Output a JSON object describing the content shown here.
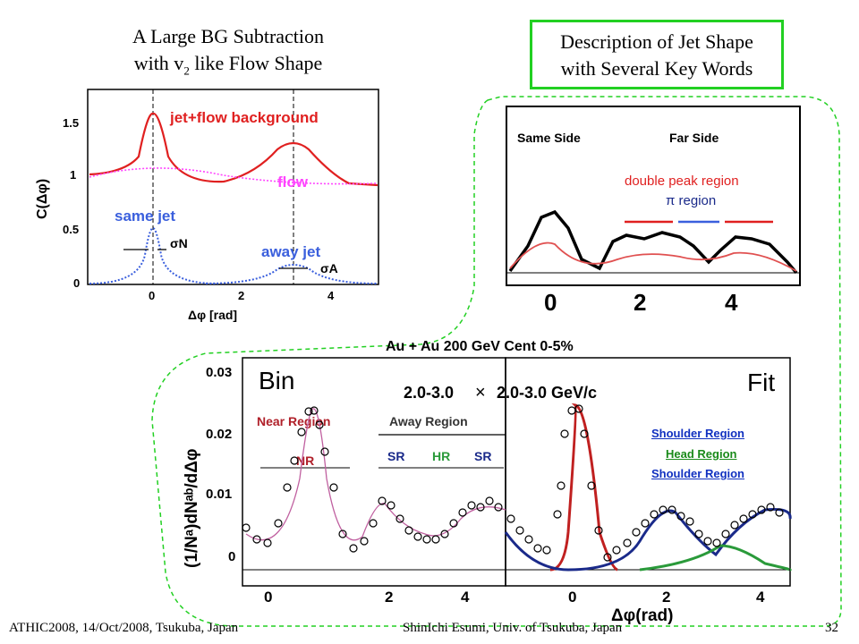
{
  "slide": {
    "title_left_line1": "A Large BG Subtraction",
    "title_left_line2_pre": "with v",
    "title_left_line2_sub": "2",
    "title_left_line2_post": " like Flow Shape",
    "title_right_line1": "Description of Jet Shape",
    "title_right_line2": "with Several Key Words",
    "footer_left": "ATHIC2008, 14/Oct/2008, Tsukuba, Japan",
    "footer_center": "ShinIchi Esumi, Univ. of Tsukuba, Japan",
    "footer_right": "32"
  },
  "plot1": {
    "ylabel": "C(Δφ)",
    "xlabel": "Δφ   [rad]",
    "yticks": [
      "1.5",
      "1",
      "0.5",
      "0"
    ],
    "xticks": [
      "0",
      "2",
      "4"
    ],
    "label_jetflow": "jet+flow background",
    "label_flow": "flow",
    "label_samejet": "same jet",
    "label_awayjet": "away jet",
    "sigma_n": "σN",
    "sigma_a": "σA"
  },
  "plot2": {
    "same_side": "Same Side",
    "far_side": "Far Side",
    "double_peak": "double peak region",
    "pi_region": "π region",
    "xticks": [
      "0",
      "2",
      "4"
    ]
  },
  "plot3": {
    "title": "Au + Au 200 GeV Cent 0-5%",
    "ylabel": "(1/Nᵃ)dNᵃᵇ/dΔφ",
    "yticks": [
      "0.03",
      "0.02",
      "0.01",
      "0"
    ],
    "xticks_left": [
      "0",
      "2",
      "4"
    ],
    "xticks_right": [
      "0",
      "2",
      "4"
    ],
    "xlabel": "Δφ(rad)",
    "bin": "Bin",
    "fit": "Fit",
    "pt_left": "2.0-3.0",
    "times": "×",
    "pt_right": "2.0-3.0 GeV/c",
    "near_region": "Near Region",
    "away_region": "Away Region",
    "nr": "NR",
    "sr": "SR",
    "hr": "HR",
    "shoulder1": "Shoulder Region",
    "head": "Head Region",
    "shoulder2": "Shoulder Region"
  },
  "colors": {
    "green_box": "#22d022",
    "red": "#e02020",
    "magenta": "#ff44ff",
    "blue": "#3a5fdd",
    "navy": "#1a2a8a",
    "nr_red": "#b0202a",
    "hr_green": "#2a9a3a",
    "link_blue": "#1030c0",
    "link_green": "#1a8a1a"
  }
}
